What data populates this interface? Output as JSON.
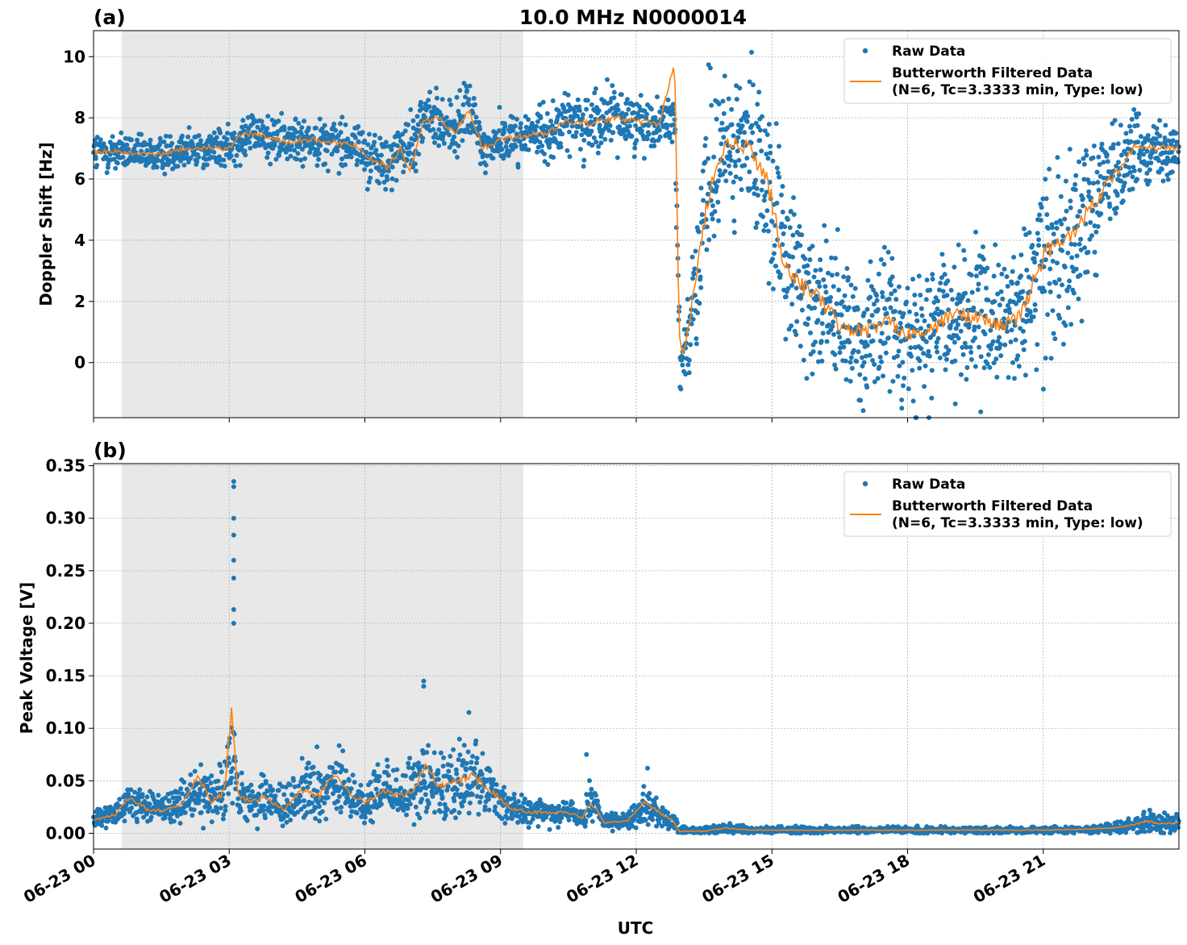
{
  "figure_title": "10.0 MHz N0000014",
  "xlabel": "UTC",
  "x_ticks": [
    "06-23 00",
    "06-23 03",
    "06-23 06",
    "06-23 09",
    "06-23 12",
    "06-23 15",
    "06-23 18",
    "06-23 21"
  ],
  "colors": {
    "raw": "#1f77b4",
    "filtered": "#ff7f0e",
    "shade": "#e8e8e8",
    "grid": "#b0b0b0"
  },
  "legend": {
    "raw": "Raw Data",
    "filtered_line1": "Butterworth Filtered Data",
    "filtered_line2": "(N=6, Tc=3.3333 min, Type: low)"
  },
  "chart_data": [
    {
      "type": "scatter",
      "panel_label": "(a)",
      "ylabel": "Doppler Shift [Hz]",
      "xlim_hours": [
        0,
        24
      ],
      "ylim": [
        -1.8,
        10.85
      ],
      "yticks": [
        0,
        2,
        4,
        6,
        8,
        10
      ],
      "grid": true,
      "legend_position": "top-right",
      "shaded_hours": [
        0.62,
        9.5
      ],
      "series": [
        {
          "name": "Raw Data",
          "kind": "scatter",
          "x_hours": [
            0,
            0.5,
            1,
            1.5,
            2,
            2.5,
            3,
            3.3,
            3.8,
            4.3,
            4.8,
            5.3,
            5.8,
            6.2,
            6.5,
            6.8,
            7,
            7.3,
            7.7,
            8,
            8.3,
            8.6,
            9,
            9.5,
            10,
            10.5,
            11,
            11.5,
            12,
            12.5,
            12.85,
            12.95,
            13.05,
            13.3,
            13.6,
            14,
            14.5,
            14.9,
            15.3,
            15.7,
            16.1,
            16.5,
            17,
            17.5,
            18,
            18.5,
            19,
            19.5,
            20,
            20.5,
            21,
            21.5,
            22,
            22.5,
            23,
            23.5,
            24
          ],
          "y_center": [
            6.8,
            6.9,
            6.8,
            6.8,
            7.0,
            7.0,
            7.0,
            7.5,
            7.4,
            7.2,
            7.3,
            7.2,
            7.1,
            6.6,
            6.4,
            7.0,
            7.0,
            8.0,
            7.9,
            7.5,
            8.3,
            7.0,
            7.3,
            7.4,
            7.5,
            7.9,
            7.8,
            8.0,
            7.9,
            7.8,
            8.0,
            0.8,
            0.2,
            2.5,
            5.5,
            7.2,
            7.0,
            6.0,
            3.0,
            2.5,
            2.0,
            1.2,
            1.0,
            1.3,
            1.0,
            1.0,
            1.6,
            1.5,
            1.2,
            1.5,
            3.5,
            4.0,
            5.0,
            6.0,
            7.0,
            7.0,
            7.0
          ],
          "y_spread": [
            0.5,
            0.4,
            0.4,
            0.4,
            0.4,
            0.4,
            0.4,
            0.5,
            0.5,
            0.5,
            0.5,
            0.5,
            0.5,
            0.6,
            0.6,
            0.6,
            0.6,
            0.6,
            0.6,
            0.6,
            0.7,
            0.5,
            0.5,
            0.5,
            0.6,
            0.6,
            0.7,
            0.6,
            0.6,
            0.5,
            0.5,
            1.0,
            0.5,
            1.5,
            2.0,
            1.2,
            1.5,
            2.0,
            1.8,
            1.8,
            1.5,
            1.5,
            1.5,
            1.5,
            1.5,
            1.4,
            1.5,
            1.5,
            1.5,
            1.5,
            2.0,
            2.0,
            1.5,
            1.0,
            0.8,
            0.6,
            0.6
          ]
        },
        {
          "name": "Butterworth Filtered Data (N=6, Tc=3.3333 min, Type: low)",
          "kind": "line",
          "x_hours": [
            0,
            0.5,
            1,
            1.5,
            2,
            2.5,
            3,
            3.3,
            3.8,
            4.3,
            4.8,
            5.3,
            5.8,
            6.2,
            6.5,
            6.8,
            7,
            7.3,
            7.7,
            8,
            8.3,
            8.6,
            9,
            9.5,
            10,
            10.5,
            11,
            11.5,
            12,
            12.5,
            12.85,
            12.95,
            13.05,
            13.3,
            13.6,
            14,
            14.5,
            14.9,
            15.3,
            15.7,
            16.1,
            16.5,
            17,
            17.5,
            18,
            18.5,
            19,
            19.5,
            20,
            20.5,
            21,
            21.5,
            22,
            22.5,
            23,
            23.5,
            24
          ],
          "y": [
            6.9,
            6.9,
            6.8,
            6.8,
            7.0,
            7.0,
            7.0,
            7.5,
            7.4,
            7.2,
            7.3,
            7.2,
            7.1,
            6.6,
            6.4,
            7.0,
            6.2,
            8.0,
            7.9,
            7.5,
            8.3,
            7.0,
            7.3,
            7.4,
            7.5,
            7.9,
            7.8,
            8.0,
            7.9,
            7.8,
            9.8,
            0.8,
            0.2,
            2.5,
            5.5,
            7.2,
            7.0,
            6.0,
            3.0,
            2.5,
            2.0,
            1.2,
            1.0,
            1.3,
            1.0,
            1.0,
            1.6,
            1.5,
            1.2,
            1.5,
            3.5,
            4.0,
            5.0,
            6.0,
            7.0,
            7.0,
            7.0
          ]
        }
      ]
    },
    {
      "type": "scatter",
      "panel_label": "(b)",
      "ylabel": "Peak Voltage [V]",
      "xlim_hours": [
        0,
        24
      ],
      "ylim": [
        -0.015,
        0.352
      ],
      "yticks": [
        0.0,
        0.05,
        0.1,
        0.15,
        0.2,
        0.25,
        0.3,
        0.35
      ],
      "ytick_labels": [
        "0.00",
        "0.05",
        "0.10",
        "0.15",
        "0.20",
        "0.25",
        "0.30",
        "0.35"
      ],
      "grid": true,
      "legend_position": "top-right",
      "shaded_hours": [
        0.62,
        9.5
      ],
      "series": [
        {
          "name": "Raw Data",
          "kind": "scatter",
          "x_hours": [
            0,
            0.5,
            0.8,
            1.2,
            1.6,
            2.0,
            2.3,
            2.6,
            2.9,
            3.05,
            3.2,
            3.5,
            3.8,
            4.2,
            4.6,
            5.0,
            5.3,
            5.7,
            6.0,
            6.4,
            6.8,
            7.1,
            7.35,
            7.6,
            8.0,
            8.4,
            8.8,
            9.2,
            9.6,
            10.0,
            10.5,
            10.8,
            11.0,
            11.3,
            11.8,
            12.2,
            12.5,
            12.8,
            12.95,
            13.5,
            14.0,
            14.5,
            15,
            16,
            17,
            18,
            19,
            20,
            21,
            22,
            22.5,
            23,
            23.3,
            23.6,
            24
          ],
          "y_center": [
            0.012,
            0.018,
            0.03,
            0.025,
            0.025,
            0.03,
            0.045,
            0.035,
            0.04,
            0.1,
            0.035,
            0.03,
            0.035,
            0.025,
            0.04,
            0.035,
            0.05,
            0.035,
            0.03,
            0.04,
            0.035,
            0.04,
            0.06,
            0.045,
            0.05,
            0.05,
            0.04,
            0.025,
            0.02,
            0.02,
            0.02,
            0.015,
            0.03,
            0.01,
            0.012,
            0.025,
            0.02,
            0.012,
            0.003,
            0.003,
            0.005,
            0.003,
            0.003,
            0.003,
            0.003,
            0.003,
            0.003,
            0.003,
            0.003,
            0.004,
            0.005,
            0.008,
            0.012,
            0.01,
            0.01
          ],
          "y_spread": [
            0.006,
            0.008,
            0.012,
            0.01,
            0.01,
            0.012,
            0.02,
            0.015,
            0.02,
            0.05,
            0.015,
            0.012,
            0.015,
            0.012,
            0.02,
            0.02,
            0.022,
            0.015,
            0.015,
            0.015,
            0.015,
            0.02,
            0.03,
            0.02,
            0.025,
            0.025,
            0.015,
            0.01,
            0.008,
            0.008,
            0.008,
            0.006,
            0.015,
            0.005,
            0.005,
            0.01,
            0.008,
            0.006,
            0.002,
            0.002,
            0.003,
            0.002,
            0.002,
            0.002,
            0.002,
            0.002,
            0.002,
            0.002,
            0.002,
            0.002,
            0.003,
            0.005,
            0.008,
            0.006,
            0.006
          ]
        },
        {
          "name": "Butterworth Filtered Data (N=6, Tc=3.3333 min, Type: low)",
          "kind": "line",
          "x_hours": [
            0,
            0.5,
            0.8,
            1.2,
            1.6,
            2.0,
            2.3,
            2.6,
            2.9,
            3.05,
            3.2,
            3.5,
            3.8,
            4.2,
            4.6,
            5.0,
            5.3,
            5.7,
            6.0,
            6.4,
            6.8,
            7.1,
            7.35,
            7.6,
            8.0,
            8.4,
            8.8,
            9.2,
            9.6,
            10.0,
            10.5,
            10.8,
            11.0,
            11.3,
            11.8,
            12.2,
            12.5,
            12.8,
            12.95,
            13.5,
            14.0,
            14.5,
            15,
            16,
            17,
            18,
            19,
            20,
            21,
            22,
            22.5,
            23,
            23.3,
            23.6,
            24
          ],
          "y": [
            0.012,
            0.018,
            0.035,
            0.022,
            0.022,
            0.03,
            0.055,
            0.03,
            0.04,
            0.12,
            0.035,
            0.03,
            0.035,
            0.022,
            0.04,
            0.035,
            0.058,
            0.035,
            0.03,
            0.04,
            0.035,
            0.04,
            0.07,
            0.045,
            0.05,
            0.055,
            0.04,
            0.025,
            0.02,
            0.02,
            0.02,
            0.015,
            0.03,
            0.01,
            0.012,
            0.03,
            0.02,
            0.012,
            0.002,
            0.002,
            0.005,
            0.003,
            0.003,
            0.003,
            0.003,
            0.003,
            0.003,
            0.003,
            0.003,
            0.004,
            0.005,
            0.008,
            0.012,
            0.009,
            0.01
          ]
        }
      ],
      "outliers": {
        "x_hours": [
          3.1,
          3.1,
          3.1,
          3.1,
          3.1,
          3.1,
          3.1,
          3.1,
          7.3,
          7.3,
          8.3,
          10.9,
          12.25
        ],
        "y": [
          0.335,
          0.33,
          0.3,
          0.284,
          0.26,
          0.243,
          0.213,
          0.2,
          0.145,
          0.14,
          0.115,
          0.075,
          0.062
        ]
      }
    }
  ]
}
